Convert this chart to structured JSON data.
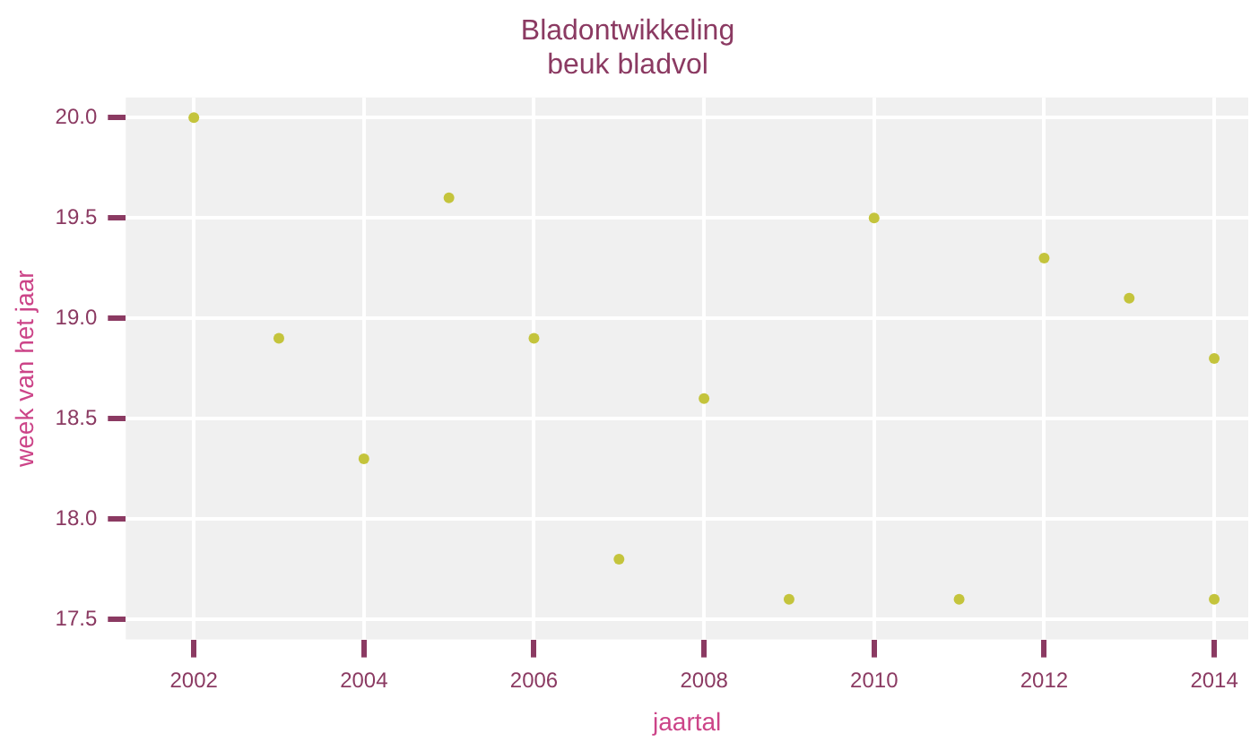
{
  "chart_data": {
    "type": "scatter",
    "title": "Bladontwikkeling",
    "subtitle": "beuk bladvol",
    "xlabel": "jaartal",
    "ylabel": "week van het jaar",
    "x": [
      2002,
      2003,
      2004,
      2005,
      2006,
      2007,
      2008,
      2009,
      2010,
      2011,
      2012,
      2013,
      2014,
      2014
    ],
    "series": [
      {
        "color": "#c4c43c",
        "values": [
          20.0,
          18.9,
          18.3,
          19.6,
          18.9,
          17.8,
          18.6,
          17.6,
          19.5,
          17.6,
          19.3,
          19.1,
          18.8,
          17.6
        ]
      }
    ],
    "xlim": [
      2001.2,
      2014.4
    ],
    "xticks": [
      2002,
      2004,
      2006,
      2008,
      2010,
      2012,
      2014
    ],
    "ylim": [
      17.4,
      20.1
    ],
    "yticks": [
      {
        "value": 17.5,
        "label": "17.5"
      },
      {
        "value": 18,
        "label": "18.0"
      },
      {
        "value": 18.5,
        "label": "18.5"
      },
      {
        "value": 19,
        "label": "19.0"
      },
      {
        "value": 19.5,
        "label": "19.5"
      },
      {
        "value": 20,
        "label": "20.0"
      }
    ],
    "grid": true,
    "legend": false,
    "marker": "circle"
  }
}
